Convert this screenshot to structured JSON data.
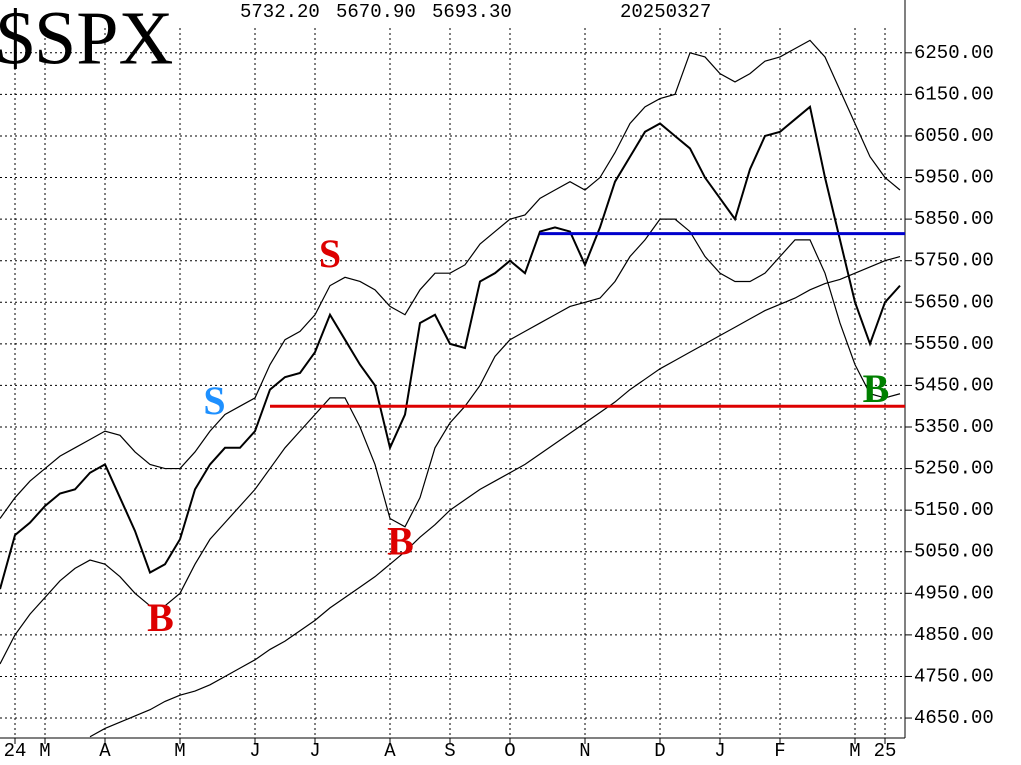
{
  "chart_data": {
    "type": "line",
    "title": "$SPX",
    "header": [
      "5732.20",
      "5670.90",
      "5693.30",
      "20250327"
    ],
    "categories": [
      null,
      "24",
      null,
      "M",
      null,
      null,
      null,
      "A",
      null,
      null,
      null,
      null,
      "M",
      null,
      null,
      null,
      null,
      "J",
      null,
      null,
      null,
      "J",
      null,
      null,
      null,
      null,
      "A",
      null,
      null,
      null,
      "S",
      null,
      null,
      null,
      "O",
      null,
      null,
      null,
      null,
      "N",
      null,
      null,
      null,
      null,
      "D",
      null,
      null,
      null,
      "J",
      null,
      null,
      null,
      "F",
      null,
      null,
      null,
      null,
      "M",
      null,
      "25",
      null
    ],
    "series": [
      {
        "color": "#000000",
        "values": [
          4960,
          5090,
          5120,
          5160,
          5190,
          5200,
          5240,
          5260,
          5180,
          5100,
          5000,
          5020,
          5080,
          5200,
          5260,
          5300,
          5300,
          5340,
          5440,
          5470,
          5480,
          5530,
          5620,
          5560,
          5500,
          5450,
          5300,
          5380,
          5600,
          5620,
          5550,
          5540,
          5700,
          5720,
          5750,
          5720,
          5820,
          5830,
          5820,
          5740,
          5830,
          5940,
          6000,
          6060,
          6080,
          6050,
          6020,
          5950,
          5900,
          5850,
          5970,
          6050,
          6060,
          6090,
          6120,
          5950,
          5800,
          5650,
          5550,
          5650,
          5690
        ]
      },
      {
        "color": "#000000",
        "values": [
          5130,
          5180,
          5220,
          5250,
          5280,
          5300,
          5320,
          5340,
          5330,
          5290,
          5260,
          5250,
          5250,
          5290,
          5340,
          5380,
          5400,
          5420,
          5500,
          5560,
          5580,
          5620,
          5690,
          5710,
          5700,
          5680,
          5640,
          5620,
          5680,
          5720,
          5720,
          5740,
          5790,
          5820,
          5850,
          5860,
          5900,
          5920,
          5940,
          5920,
          5950,
          6010,
          6080,
          6120,
          6140,
          6150,
          6250,
          6240,
          6200,
          6180,
          6200,
          6230,
          6240,
          6260,
          6280,
          6240,
          6160,
          6080,
          6000,
          5950,
          5920
        ]
      },
      {
        "color": "#000000",
        "values": [
          4780,
          4850,
          4900,
          4940,
          4980,
          5010,
          5030,
          5020,
          4990,
          4950,
          4920,
          4920,
          4950,
          5020,
          5080,
          5120,
          5160,
          5200,
          5250,
          5300,
          5340,
          5380,
          5420,
          5420,
          5350,
          5260,
          5130,
          5110,
          5180,
          5300,
          5360,
          5400,
          5450,
          5520,
          5560,
          5580,
          5600,
          5620,
          5640,
          5650,
          5660,
          5700,
          5760,
          5800,
          5850,
          5850,
          5820,
          5760,
          5720,
          5700,
          5700,
          5720,
          5760,
          5800,
          5800,
          5720,
          5600,
          5500,
          5430,
          5420,
          5430
        ]
      },
      {
        "color": "#000000",
        "values": [
          null,
          null,
          null,
          null,
          null,
          null,
          4605,
          4625,
          4640,
          4655,
          4670,
          4690,
          4705,
          4715,
          4730,
          4750,
          4770,
          4790,
          4815,
          4835,
          4860,
          4885,
          4915,
          4940,
          4965,
          4990,
          5020,
          5050,
          5085,
          5115,
          5150,
          5175,
          5200,
          5220,
          5240,
          5260,
          5285,
          5310,
          5335,
          5360,
          5385,
          5410,
          5440,
          5465,
          5490,
          5510,
          5530,
          5550,
          5570,
          5590,
          5610,
          5630,
          5645,
          5660,
          5680,
          5695,
          5705,
          5720,
          5735,
          5750,
          5760
        ]
      }
    ],
    "hlines": [
      {
        "value": 5815,
        "color": "#0000cc",
        "start": 36
      },
      {
        "value": 5400,
        "color": "#dd0000",
        "start": 18
      }
    ],
    "annotations": [
      {
        "text": "B",
        "color": "#dd0000",
        "index": 10.7,
        "value": 4881
      },
      {
        "text": "S",
        "color": "#1e90ff",
        "index": 14.3,
        "value": 5403
      },
      {
        "text": "S",
        "color": "#dd0000",
        "index": 22,
        "value": 5757
      },
      {
        "text": "B",
        "color": "#dd0000",
        "index": 26.7,
        "value": 5066
      },
      {
        "text": "B",
        "color": "#008000",
        "index": 58.4,
        "value": 5432
      }
    ],
    "ylim": [
      4602,
      6377
    ],
    "yticks": [
      {
        "value": 4650,
        "label": "4650.00"
      },
      {
        "value": 4750,
        "label": "4750.00"
      },
      {
        "value": 4850,
        "label": "4850.00"
      },
      {
        "value": 4950,
        "label": "4950.00"
      },
      {
        "value": 5050,
        "label": "5050.00"
      },
      {
        "value": 5150,
        "label": "5150.00"
      },
      {
        "value": 5250,
        "label": "5250.00"
      },
      {
        "value": 5350,
        "label": "5350.00"
      },
      {
        "value": 5450,
        "label": "5450.00"
      },
      {
        "value": 5550,
        "label": "5550.00"
      },
      {
        "value": 5650,
        "label": "5650.00"
      },
      {
        "value": 5750,
        "label": "5750.00"
      },
      {
        "value": 5850,
        "label": "5850.00"
      },
      {
        "value": 5950,
        "label": "5950.00"
      },
      {
        "value": 6050,
        "label": "6050.00"
      },
      {
        "value": 6150,
        "label": "6150.00"
      },
      {
        "value": 6250,
        "label": "6250.00"
      }
    ],
    "grid": true
  }
}
